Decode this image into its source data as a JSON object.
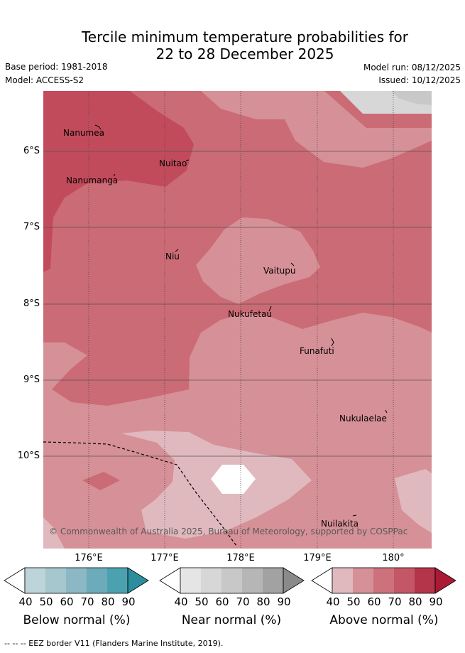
{
  "title_line1": "Tercile minimum temperature probabilities for",
  "title_line2": "22 to 28 December 2025",
  "base_period": "Base period: 1981-2018",
  "model": "Model: ACCESS-S2",
  "model_run": "Model run: 08/12/2025",
  "issued": "Issued: 10/12/2025",
  "lat_labels": [
    "6°S",
    "7°S",
    "8°S",
    "9°S",
    "10°S"
  ],
  "lon_labels": [
    "176°E",
    "177°E",
    "178°E",
    "179°E",
    "180°"
  ],
  "places": {
    "nanumea": "Nanumea",
    "nuitao": "Nuitao",
    "nanumanga": "Nanumanga",
    "niu": "Niu",
    "vaitupu": "Vaitupu",
    "nukufetau": "Nukufetau",
    "funafuti": "Funafuti",
    "nukulaelae": "Nukulaelae",
    "nuilakita": "Nuilakita"
  },
  "copyright": "© Commonwealth of Australia 2025, Bureau of Meteorology, supported by COSPPac",
  "colorbars": {
    "below": {
      "title": "Below normal (%)",
      "ticks": [
        "40",
        "50",
        "60",
        "70",
        "80",
        "90"
      ],
      "colors": [
        "#ffffff",
        "#bdd4da",
        "#a6c7ce",
        "#8bb8c4",
        "#6cabb9",
        "#4ca1b1",
        "#2b8d9e"
      ]
    },
    "near": {
      "title": "Near normal (%)",
      "ticks": [
        "40",
        "50",
        "60",
        "70",
        "80",
        "90"
      ],
      "colors": [
        "#ffffff",
        "#e5e5e5",
        "#d7d7d7",
        "#c8c8c8",
        "#b6b6b6",
        "#a2a2a2",
        "#8a8a8a"
      ]
    },
    "above": {
      "title": "Above normal (%)",
      "ticks": [
        "40",
        "50",
        "60",
        "70",
        "80",
        "90"
      ],
      "colors": [
        "#ffffff",
        "#e0b9bf",
        "#d69097",
        "#cd727c",
        "#c35767",
        "#b4344a",
        "#aa1a35"
      ]
    }
  },
  "footnote": "-- -- -- EEZ border V11 (Flanders Marine Institute, 2019).",
  "colors": {
    "above_50_60": "#d69097",
    "above_60_70": "#cb6b75",
    "above_70_80": "#c24b5b",
    "above_40_50": "#e0b9bf",
    "near_50_60": "#d7d7d7",
    "grid": "#555555"
  }
}
